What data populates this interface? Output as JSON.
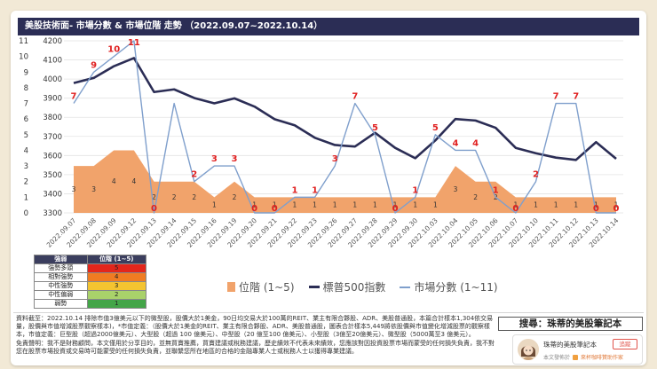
{
  "title": "美股技術面- 市場分數 & 市場位階 走勢 （2022.09.07~2022.10.14）",
  "chart_data": {
    "type": "line",
    "categories": [
      "2022.09.07",
      "2022.09.08",
      "2022.09.09",
      "2022.09.12",
      "2022.09.13",
      "2022.09.14",
      "2022.09.15",
      "2022.09.16",
      "2022.09.19",
      "2022.09.20",
      "2022.09.21",
      "2022.09.22",
      "2022.09.23",
      "2022.09.26",
      "2022.09.27",
      "2022.09.28",
      "2022.09.29",
      "2022.09.30",
      "2022.10.03",
      "2022.10.04",
      "2022.10.05",
      "2022.10.06",
      "2022.10.07",
      "2022.10.10",
      "2022.10.11",
      "2022.10.12",
      "2022.10.13",
      "2022.10.14"
    ],
    "series": [
      {
        "name": "位階 (1~5)",
        "kind": "area",
        "axis": "left",
        "color": "#f1a36b",
        "values": [
          3,
          3,
          4,
          4,
          2,
          2,
          2,
          1,
          2,
          1,
          1,
          1,
          1,
          1,
          1,
          1,
          1,
          1,
          1,
          3,
          2,
          2,
          1,
          1,
          1,
          1,
          1,
          1
        ]
      },
      {
        "name": "標普500指數",
        "kind": "line",
        "axis": "right",
        "color": "#2b2d55",
        "values": [
          3979,
          4006,
          4067,
          4110,
          3932,
          3946,
          3901,
          3873,
          3899,
          3856,
          3790,
          3758,
          3693,
          3655,
          3647,
          3719,
          3640,
          3586,
          3679,
          3791,
          3783,
          3745,
          3640,
          3612,
          3589,
          3577,
          3670,
          3583
        ]
      },
      {
        "name": "市場分數 (1~11)",
        "kind": "line",
        "axis": "left",
        "color": "#7f9fcc",
        "values": [
          7,
          9,
          10,
          11,
          0,
          7,
          2,
          3,
          3,
          0,
          0,
          1,
          1,
          3,
          7,
          5,
          0,
          1,
          5,
          4,
          4,
          1,
          0,
          2,
          7,
          7,
          0,
          0
        ],
        "labels": [
          "7",
          "9",
          "10",
          "11",
          "0",
          null,
          "2",
          "3",
          "3",
          "0",
          "0",
          "1",
          "1",
          "3",
          "7",
          "5",
          "0",
          "1",
          "5",
          "4",
          "4",
          "1",
          "0",
          "2",
          "7",
          "7",
          "0",
          "0"
        ]
      }
    ],
    "left_axis": {
      "range": [
        0,
        11
      ],
      "ticks": [
        11,
        10,
        9,
        8,
        7,
        6,
        5,
        4,
        3,
        2,
        1,
        0
      ]
    },
    "right_axis": {
      "range": [
        3300,
        4200
      ],
      "ticks": [
        4200,
        4100,
        4000,
        3900,
        3800,
        3700,
        3600,
        3500,
        3400,
        3300
      ]
    },
    "grid": true,
    "legend": "bottom"
  },
  "legend_table": {
    "header": [
      "強弱",
      "位階 (1~5)"
    ],
    "rows": [
      {
        "label": "強勢多頭",
        "value": "5",
        "color": "#e3261c"
      },
      {
        "label": "相對強勢",
        "value": "4",
        "color": "#f07c22"
      },
      {
        "label": "中性強勢",
        "value": "3",
        "color": "#f4c430"
      },
      {
        "label": "中性偏弱",
        "value": "2",
        "color": "#a9d26a"
      },
      {
        "label": "弱勢",
        "value": "1",
        "color": "#43a548"
      }
    ]
  },
  "notes": {
    "data_source": "資料截至：2022.10.14 排除市值3億美元以下的微型股，股價大於1美金，90日均交易大於100萬的REIT、業主有限合夥股、ADR、美股普通股，本篇合計樣本1,304依交易量，股價與市值增減股票觀察樣本)，*市值定義：（股價大於1美金的REIT、業主有限合夥股、ADR、美股普通股，圖表合計樣本5,449將依股價與市值變化增減股票的觀察樣本，市值定義：巨型股（超過2000億美元）、大型股（超過 100 億美元）、中型股（20 億至100 億美元）、小型股（3億至20億美元）、微型股（5000萬至3 億美元）。",
    "disclaimer": "免責聲明：我不是財務顧問，本文僅用於分享目的，並無買賣推薦，買賣建議或稅務建議，歷史績效不代表未來績效，您應該對因投資股票市場而蒙受的任何損失負責，我不對您在股票市場投資或交易時可能蒙受的任何損失負責，並聯繫您所在地區的合格的金融專業人士或稅務人士以獲得專業建議。"
  },
  "promo": {
    "search_text": "搜尋：珠蒂的美股筆記本",
    "author": "珠蒂的美股筆記本",
    "follow_label": "追蹤",
    "published_prefix": "本文發佈於",
    "platform_text": "來杯咖啡贊助作家"
  }
}
